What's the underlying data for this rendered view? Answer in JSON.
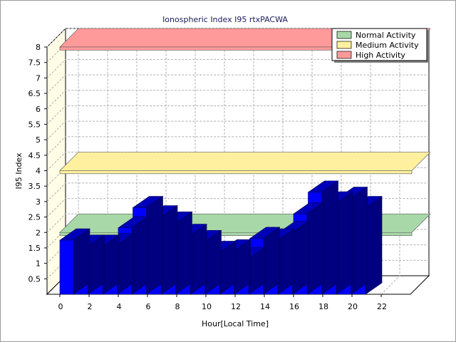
{
  "chart_data": {
    "type": "bar",
    "title": "Ionospheric Index I95 rtxPACWA",
    "xlabel": "Hour[Local Time]",
    "ylabel": "I95 Index",
    "xlim": [
      -0.5,
      25
    ],
    "ylim": [
      0,
      8
    ],
    "x_ticks": [
      "0",
      "2",
      "4",
      "6",
      "8",
      "10",
      "12",
      "14",
      "16",
      "18",
      "20",
      "22"
    ],
    "y_ticks": [
      "0.5",
      "1",
      "1.5",
      "2",
      "2.5",
      "3",
      "3.5",
      "4",
      "4.5",
      "5",
      "5.5",
      "6",
      "6.5",
      "7",
      "7.5",
      "8"
    ],
    "x": [
      0,
      1,
      2,
      3,
      4,
      5,
      6,
      7,
      8,
      9,
      10,
      11,
      12,
      13,
      14,
      15,
      16,
      17,
      18,
      19,
      20
    ],
    "values": [
      1.75,
      1.55,
      1.55,
      1.6,
      2.15,
      2.8,
      2.5,
      2.3,
      1.9,
      1.7,
      1.35,
      1.4,
      1.15,
      1.8,
      1.75,
      2.0,
      2.6,
      3.3,
      2.95,
      3.1,
      2.8
    ],
    "bar_color": "#0000ff",
    "bands": [
      {
        "name": "Normal Activity",
        "from": 1.9,
        "to": 2.0,
        "color": "#a8d8a8"
      },
      {
        "name": "Medium Activity",
        "from": 3.9,
        "to": 4.0,
        "color": "#fff0a0"
      },
      {
        "name": "High Activity",
        "from": 7.9,
        "to": 8.0,
        "color": "#ff9a9a"
      }
    ],
    "legend": [
      "Normal Activity",
      "Medium Activity",
      "High Activity"
    ],
    "legend_position": "top-right",
    "grid": true
  }
}
